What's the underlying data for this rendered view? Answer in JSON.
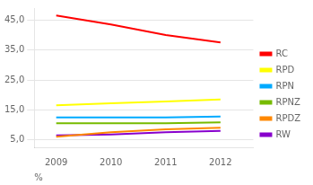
{
  "chart_data": {
    "type": "line",
    "x": [
      2009,
      2010,
      2011,
      2012
    ],
    "series": [
      {
        "name": "RC",
        "color": "#ff0000",
        "values": [
          46.5,
          43.5,
          40.0,
          37.5
        ]
      },
      {
        "name": "RPD",
        "color": "#ffff00",
        "values": [
          16.5,
          17.2,
          17.8,
          18.5
        ]
      },
      {
        "name": "RPN",
        "color": "#00aaff",
        "values": [
          12.5,
          12.5,
          12.5,
          12.8
        ]
      },
      {
        "name": "RPNZ",
        "color": "#77bb00",
        "values": [
          10.5,
          10.5,
          10.5,
          10.8
        ]
      },
      {
        "name": "RPDZ",
        "color": "#ff8800",
        "values": [
          6.0,
          7.5,
          8.5,
          9.0
        ]
      },
      {
        "name": "RW",
        "color": "#8800cc",
        "values": [
          6.5,
          6.8,
          7.5,
          8.0
        ]
      }
    ],
    "xlabel": "%",
    "xlim": [
      2008.6,
      2012.6
    ],
    "xticks": [
      2009,
      2010,
      2011,
      2012
    ],
    "ylim": [
      2.5,
      49.0
    ],
    "yticks": [
      {
        "value": 5.0,
        "label": "5,0"
      },
      {
        "value": 15.0,
        "label": "15,0"
      },
      {
        "value": 25.0,
        "label": "25,0"
      },
      {
        "value": 35.0,
        "label": "35,0"
      },
      {
        "value": 45.0,
        "label": "45,0"
      }
    ],
    "grid": "y",
    "legend": "right"
  }
}
